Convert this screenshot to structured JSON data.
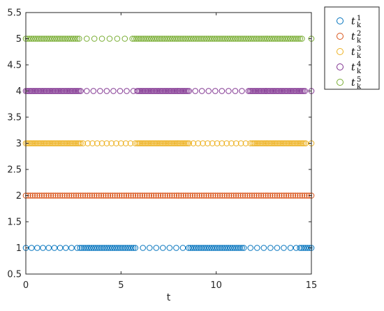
{
  "chart_data": {
    "type": "scatter",
    "xlabel": "t",
    "ylabel": "",
    "xlim": [
      0,
      15
    ],
    "ylim": [
      0.5,
      5.5
    ],
    "xticks": [
      0,
      5,
      10,
      15
    ],
    "yticks": [
      0.5,
      1,
      1.5,
      2,
      2.5,
      3,
      3.5,
      4,
      4.5,
      5,
      5.5
    ],
    "ytick_labels": [
      "0.5",
      "1",
      "1.5",
      "2",
      "2.5",
      "3",
      "3.5",
      "4",
      "4.5",
      "5",
      "5.5"
    ],
    "xtick_labels": [
      "0",
      "5",
      "10",
      "15"
    ],
    "grid": false,
    "legend_position": "outside-top-right",
    "marker": "open-circle",
    "series": [
      {
        "name": "t_k^1",
        "label_base": "t",
        "label_sub": "k",
        "label_sup": "1",
        "color": "#0072BD",
        "y": 1,
        "x": [
          0,
          0.3,
          0.6,
          0.9,
          1.2,
          1.5,
          1.8,
          2.1,
          2.4,
          2.7,
          2.85,
          2.95,
          3.05,
          3.15,
          3.25,
          3.35,
          3.45,
          3.55,
          3.65,
          3.75,
          3.85,
          3.95,
          4.05,
          4.15,
          4.25,
          4.35,
          4.45,
          4.55,
          4.65,
          4.75,
          4.85,
          4.95,
          5.05,
          5.15,
          5.25,
          5.35,
          5.45,
          5.55,
          5.65,
          5.75,
          6.15,
          6.5,
          6.85,
          7.2,
          7.55,
          7.9,
          8.25,
          8.55,
          8.65,
          8.75,
          8.85,
          8.95,
          9.05,
          9.15,
          9.25,
          9.35,
          9.45,
          9.55,
          9.65,
          9.75,
          9.85,
          9.95,
          10.05,
          10.15,
          10.25,
          10.35,
          10.45,
          10.55,
          10.65,
          10.75,
          10.85,
          10.95,
          11.05,
          11.15,
          11.25,
          11.35,
          11.45,
          11.8,
          12.15,
          12.5,
          12.85,
          13.2,
          13.55,
          13.9,
          14.2,
          14.4,
          14.5,
          14.6,
          14.7,
          14.8,
          14.9,
          15
        ]
      },
      {
        "name": "t_k^2",
        "label_base": "t",
        "label_sub": "k",
        "label_sup": "2",
        "color": "#D95319",
        "y": 2,
        "x": [
          0,
          0.12,
          0.24,
          0.36,
          0.48,
          0.6,
          0.72,
          0.84,
          0.96,
          1.08,
          1.2,
          1.32,
          1.44,
          1.56,
          1.68,
          1.8,
          1.92,
          2.04,
          2.16,
          2.28,
          2.4,
          2.52,
          2.64,
          2.76,
          2.88,
          3.0,
          3.12,
          3.24,
          3.36,
          3.48,
          3.6,
          3.72,
          3.84,
          3.96,
          4.08,
          4.2,
          4.32,
          4.44,
          4.56,
          4.68,
          4.8,
          4.92,
          5.04,
          5.16,
          5.28,
          5.4,
          5.52,
          5.64,
          5.76,
          5.88,
          6.0,
          6.12,
          6.24,
          6.36,
          6.48,
          6.6,
          6.72,
          6.84,
          6.96,
          7.08,
          7.2,
          7.32,
          7.44,
          7.56,
          7.68,
          7.8,
          7.92,
          8.04,
          8.16,
          8.28,
          8.4,
          8.52,
          8.64,
          8.76,
          8.88,
          9.0,
          9.12,
          9.24,
          9.36,
          9.48,
          9.6,
          9.72,
          9.84,
          9.96,
          10.08,
          10.2,
          10.32,
          10.44,
          10.56,
          10.68,
          10.8,
          10.92,
          11.04,
          11.16,
          11.28,
          11.4,
          11.52,
          11.64,
          11.76,
          11.88,
          12.0,
          12.12,
          12.24,
          12.36,
          12.48,
          12.6,
          12.72,
          12.84,
          12.96,
          13.08,
          13.2,
          13.32,
          13.44,
          13.56,
          13.68,
          13.8,
          13.92,
          14.04,
          14.16,
          14.28,
          14.4,
          14.52,
          14.64,
          14.76,
          14.88,
          15
        ]
      },
      {
        "name": "t_k^3",
        "label_base": "t",
        "label_sub": "k",
        "label_sup": "3",
        "color": "#EDB120",
        "y": 3,
        "x": [
          0,
          0.08,
          0.16,
          0.24,
          0.32,
          0.4,
          0.48,
          0.56,
          0.64,
          0.72,
          0.8,
          0.88,
          0.96,
          1.04,
          1.12,
          1.2,
          1.28,
          1.36,
          1.44,
          1.52,
          1.6,
          1.68,
          1.76,
          1.84,
          1.92,
          2.0,
          2.08,
          2.16,
          2.24,
          2.32,
          2.4,
          2.48,
          2.56,
          2.64,
          2.72,
          2.8,
          2.88,
          3.0,
          3.25,
          3.5,
          3.75,
          4.0,
          4.25,
          4.5,
          4.75,
          5.0,
          5.25,
          5.5,
          5.75,
          5.85,
          5.93,
          6.01,
          6.09,
          6.17,
          6.25,
          6.33,
          6.41,
          6.49,
          6.57,
          6.65,
          6.73,
          6.81,
          6.89,
          6.97,
          7.05,
          7.13,
          7.21,
          7.29,
          7.37,
          7.45,
          7.53,
          7.61,
          7.69,
          7.77,
          7.85,
          7.93,
          8.01,
          8.09,
          8.17,
          8.25,
          8.33,
          8.41,
          8.49,
          8.57,
          8.8,
          9.05,
          9.3,
          9.55,
          9.8,
          10.05,
          10.3,
          10.55,
          10.8,
          11.05,
          11.3,
          11.55,
          11.8,
          11.9,
          11.98,
          12.06,
          12.14,
          12.22,
          12.3,
          12.38,
          12.46,
          12.54,
          12.62,
          12.7,
          12.78,
          12.86,
          12.94,
          13.02,
          13.1,
          13.18,
          13.26,
          13.34,
          13.42,
          13.5,
          13.58,
          13.66,
          13.74,
          13.82,
          13.9,
          13.98,
          14.06,
          14.14,
          14.22,
          14.3,
          14.38,
          14.46,
          14.54,
          14.62,
          14.7,
          15
        ]
      },
      {
        "name": "t_k^4",
        "label_base": "t",
        "label_sub": "k",
        "label_sup": "4",
        "color": "#7E2F8E",
        "y": 4,
        "x": [
          0,
          0.08,
          0.16,
          0.24,
          0.32,
          0.4,
          0.48,
          0.56,
          0.64,
          0.72,
          0.8,
          0.88,
          0.96,
          1.04,
          1.12,
          1.2,
          1.28,
          1.36,
          1.44,
          1.52,
          1.6,
          1.68,
          1.76,
          1.84,
          1.92,
          2.0,
          2.08,
          2.16,
          2.24,
          2.32,
          2.4,
          2.48,
          2.56,
          2.64,
          2.72,
          2.8,
          2.88,
          3.2,
          3.55,
          3.9,
          4.25,
          4.6,
          4.95,
          5.3,
          5.65,
          5.85,
          5.93,
          6.01,
          6.09,
          6.17,
          6.25,
          6.33,
          6.41,
          6.49,
          6.57,
          6.65,
          6.73,
          6.81,
          6.89,
          6.97,
          7.05,
          7.13,
          7.21,
          7.29,
          7.37,
          7.45,
          7.53,
          7.61,
          7.69,
          7.77,
          7.85,
          7.93,
          8.01,
          8.09,
          8.17,
          8.25,
          8.33,
          8.41,
          8.49,
          8.57,
          8.9,
          9.25,
          9.6,
          9.95,
          10.3,
          10.65,
          11.0,
          11.35,
          11.7,
          11.78,
          11.86,
          11.94,
          12.02,
          12.1,
          12.18,
          12.26,
          12.34,
          12.42,
          12.5,
          12.58,
          12.66,
          12.74,
          12.82,
          12.9,
          12.98,
          13.06,
          13.14,
          13.22,
          13.3,
          13.38,
          13.46,
          13.54,
          13.62,
          13.7,
          13.78,
          13.86,
          13.94,
          14.02,
          14.1,
          14.18,
          14.26,
          14.34,
          14.42,
          14.5,
          14.58,
          14.66,
          15
        ]
      },
      {
        "name": "t_k^5",
        "label_base": "t",
        "label_sub": "k",
        "label_sup": "5",
        "color": "#77AC30",
        "y": 5,
        "x": [
          0,
          0.1,
          0.2,
          0.3,
          0.4,
          0.5,
          0.6,
          0.7,
          0.8,
          0.9,
          1.0,
          1.1,
          1.2,
          1.3,
          1.4,
          1.5,
          1.6,
          1.7,
          1.8,
          1.9,
          2.0,
          2.1,
          2.2,
          2.3,
          2.4,
          2.5,
          2.6,
          2.7,
          2.8,
          3.2,
          3.6,
          4.0,
          4.4,
          4.8,
          5.2,
          5.6,
          5.7,
          5.8,
          5.9,
          6.0,
          6.1,
          6.2,
          6.3,
          6.4,
          6.5,
          6.6,
          6.7,
          6.8,
          6.9,
          7.0,
          7.1,
          7.2,
          7.3,
          7.4,
          7.5,
          7.6,
          7.7,
          7.8,
          7.9,
          8.0,
          8.1,
          8.2,
          8.3,
          8.4,
          8.5,
          8.6,
          8.7,
          8.8,
          8.9,
          9.0,
          9.1,
          9.2,
          9.3,
          9.4,
          9.5,
          9.6,
          9.7,
          9.8,
          9.9,
          10.0,
          10.1,
          10.2,
          10.3,
          10.4,
          10.5,
          10.6,
          10.7,
          10.8,
          10.9,
          11.0,
          11.1,
          11.2,
          11.3,
          11.4,
          11.5,
          11.6,
          11.7,
          11.8,
          11.9,
          12.0,
          12.1,
          12.2,
          12.3,
          12.4,
          12.5,
          12.6,
          12.7,
          12.8,
          12.9,
          13.0,
          13.1,
          13.2,
          13.3,
          13.4,
          13.5,
          13.6,
          13.7,
          13.8,
          13.9,
          14.0,
          14.1,
          14.2,
          14.3,
          14.4,
          14.5,
          15
        ]
      }
    ]
  }
}
